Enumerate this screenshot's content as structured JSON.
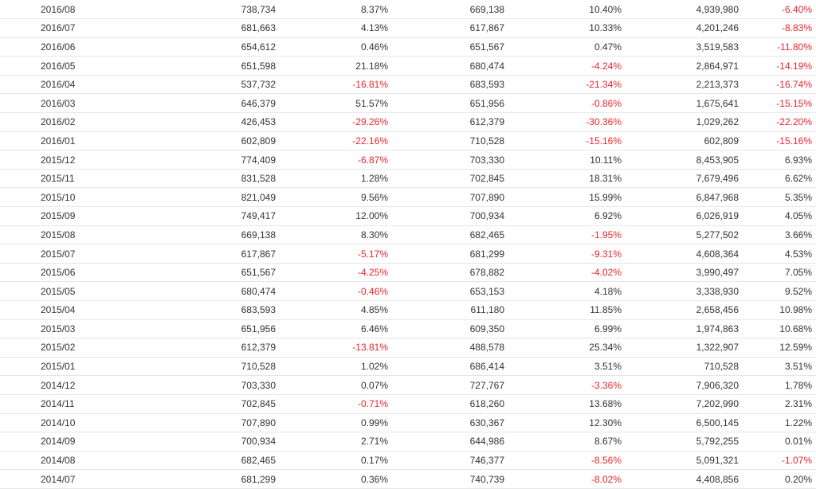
{
  "colors": {
    "negative": "#e8262d",
    "text": "#333333",
    "divider": "#e6e6e6"
  },
  "rows": [
    [
      "2016/08",
      "738,734",
      "8.37%",
      "669,138",
      "10.40%",
      "4,939,980",
      "-6.40%"
    ],
    [
      "2016/07",
      "681,663",
      "4.13%",
      "617,867",
      "10.33%",
      "4,201,246",
      "-8.83%"
    ],
    [
      "2016/06",
      "654,612",
      "0.46%",
      "651,567",
      "0.47%",
      "3,519,583",
      "-11.80%"
    ],
    [
      "2016/05",
      "651,598",
      "21.18%",
      "680,474",
      "-4.24%",
      "2,864,971",
      "-14.19%"
    ],
    [
      "2016/04",
      "537,732",
      "-16.81%",
      "683,593",
      "-21.34%",
      "2,213,373",
      "-16.74%"
    ],
    [
      "2016/03",
      "646,379",
      "51.57%",
      "651,956",
      "-0.86%",
      "1,675,641",
      "-15.15%"
    ],
    [
      "2016/02",
      "426,453",
      "-29.26%",
      "612,379",
      "-30.36%",
      "1,029,262",
      "-22.20%"
    ],
    [
      "2016/01",
      "602,809",
      "-22.16%",
      "710,528",
      "-15.16%",
      "602,809",
      "-15.16%"
    ],
    [
      "2015/12",
      "774,409",
      "-6.87%",
      "703,330",
      "10.11%",
      "8,453,905",
      "6.93%"
    ],
    [
      "2015/11",
      "831,528",
      "1.28%",
      "702,845",
      "18.31%",
      "7,679,496",
      "6.62%"
    ],
    [
      "2015/10",
      "821,049",
      "9.56%",
      "707,890",
      "15.99%",
      "6,847,968",
      "5.35%"
    ],
    [
      "2015/09",
      "749,417",
      "12.00%",
      "700,934",
      "6.92%",
      "6,026,919",
      "4.05%"
    ],
    [
      "2015/08",
      "669,138",
      "8.30%",
      "682,465",
      "-1.95%",
      "5,277,502",
      "3.66%"
    ],
    [
      "2015/07",
      "617,867",
      "-5.17%",
      "681,299",
      "-9.31%",
      "4,608,364",
      "4.53%"
    ],
    [
      "2015/06",
      "651,567",
      "-4.25%",
      "678,882",
      "-4.02%",
      "3,990,497",
      "7.05%"
    ],
    [
      "2015/05",
      "680,474",
      "-0.46%",
      "653,153",
      "4.18%",
      "3,338,930",
      "9.52%"
    ],
    [
      "2015/04",
      "683,593",
      "4.85%",
      "611,180",
      "11.85%",
      "2,658,456",
      "10.98%"
    ],
    [
      "2015/03",
      "651,956",
      "6.46%",
      "609,350",
      "6.99%",
      "1,974,863",
      "10.68%"
    ],
    [
      "2015/02",
      "612,379",
      "-13.81%",
      "488,578",
      "25.34%",
      "1,322,907",
      "12.59%"
    ],
    [
      "2015/01",
      "710,528",
      "1.02%",
      "686,414",
      "3.51%",
      "710,528",
      "3.51%"
    ],
    [
      "2014/12",
      "703,330",
      "0.07%",
      "727,767",
      "-3.36%",
      "7,906,320",
      "1.78%"
    ],
    [
      "2014/11",
      "702,845",
      "-0.71%",
      "618,260",
      "13.68%",
      "7,202,990",
      "2.31%"
    ],
    [
      "2014/10",
      "707,890",
      "0.99%",
      "630,367",
      "12.30%",
      "6,500,145",
      "1.22%"
    ],
    [
      "2014/09",
      "700,934",
      "2.71%",
      "644,986",
      "8.67%",
      "5,792,255",
      "0.01%"
    ],
    [
      "2014/08",
      "682,465",
      "0.17%",
      "746,377",
      "-8.56%",
      "5,091,321",
      "-1.07%"
    ],
    [
      "2014/07",
      "681,299",
      "0.36%",
      "740,739",
      "-8.02%",
      "4,408,856",
      "0.20%"
    ]
  ]
}
